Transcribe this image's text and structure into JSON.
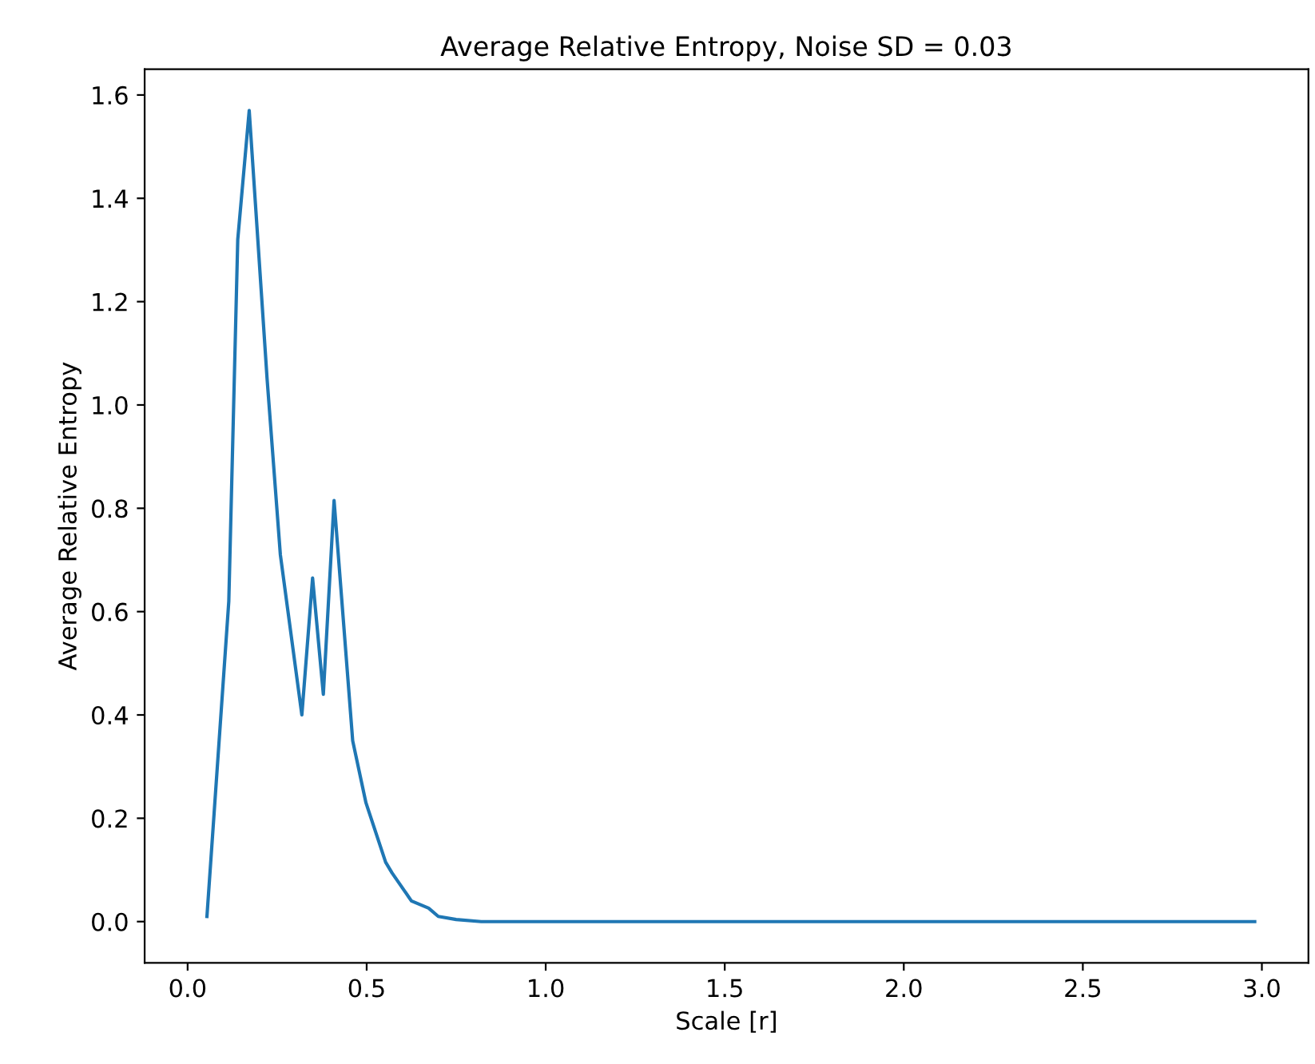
{
  "chart_data": {
    "type": "line",
    "title": "Average Relative Entropy, Noise SD = 0.03",
    "xlabel": "Scale [r]",
    "ylabel": "Average Relative Entropy",
    "series": [
      {
        "color": "#1f77b4",
        "x": [
          0.054,
          0.115,
          0.14,
          0.172,
          0.222,
          0.259,
          0.319,
          0.349,
          0.379,
          0.409,
          0.461,
          0.498,
          0.553,
          0.571,
          0.625,
          0.673,
          0.7,
          0.75,
          0.82,
          1.0,
          1.5,
          2.0,
          2.5,
          2.98
        ],
        "values": [
          0.01,
          0.62,
          1.32,
          1.57,
          1.05,
          0.71,
          0.4,
          0.665,
          0.44,
          0.815,
          0.35,
          0.23,
          0.115,
          0.094,
          0.04,
          0.026,
          0.01,
          0.004,
          0.0,
          0.0,
          0.0,
          0.0,
          0.0,
          0.0
        ]
      }
    ],
    "xlim": [
      -0.12,
      3.13
    ],
    "ylim": [
      -0.08,
      1.65
    ],
    "xticks": [
      {
        "value": 0,
        "label": "0.0"
      },
      0.5,
      {
        "value": 1,
        "label": "1.0"
      },
      1.5,
      {
        "value": 2,
        "label": "2.0"
      },
      2.5,
      {
        "value": 3,
        "label": "3.0"
      }
    ],
    "yticks": [
      {
        "value": 0,
        "label": "0.0"
      },
      0.2,
      0.4,
      0.6,
      0.8,
      {
        "value": 1,
        "label": "1.0"
      },
      1.2,
      1.4,
      1.6
    ],
    "grid": false,
    "legend": false
  }
}
